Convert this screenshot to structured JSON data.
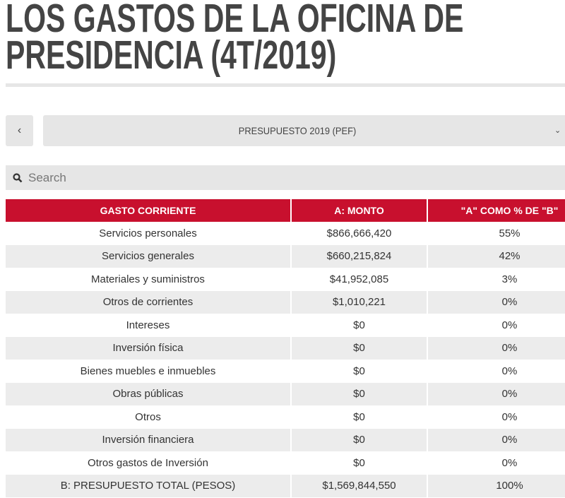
{
  "title_line1": "LOS GASTOS DE LA OFICINA DE",
  "title_line2": "PRESIDENCIA (4T/2019)",
  "nav": {
    "prev_label": "‹",
    "select_value": "PRESUPUESTO 2019 (PEF)",
    "chevron": "⌄"
  },
  "search": {
    "placeholder": "Search"
  },
  "table": {
    "headers": [
      "GASTO  CORRIENTE",
      "A: MONTO",
      "\"A\"  COMO % DE \"B\""
    ],
    "rows": [
      [
        "Servicios personales",
        "$866,666,420",
        "55%"
      ],
      [
        "Servicios generales",
        "$660,215,824",
        "42%"
      ],
      [
        "Materiales y suministros",
        "$41,952,085",
        "3%"
      ],
      [
        "Otros de corrientes",
        "$1,010,221",
        "0%"
      ],
      [
        "Intereses",
        "$0",
        "0%"
      ],
      [
        "Inversión física",
        "$0",
        "0%"
      ],
      [
        "Bienes muebles e inmuebles",
        "$0",
        "0%"
      ],
      [
        "Obras públicas",
        "$0",
        "0%"
      ],
      [
        "Otros",
        "$0",
        "0%"
      ],
      [
        "Inversión financiera",
        "$0",
        "0%"
      ],
      [
        "Otros gastos de Inversión",
        "$0",
        "0%"
      ],
      [
        "B:  PRESUPUESTO TOTAL (PESOS)",
        "$1,569,844,550",
        "100%"
      ]
    ]
  },
  "colors": {
    "header_red": "#c8102e",
    "stripe": "#ececec",
    "title": "#444444"
  }
}
